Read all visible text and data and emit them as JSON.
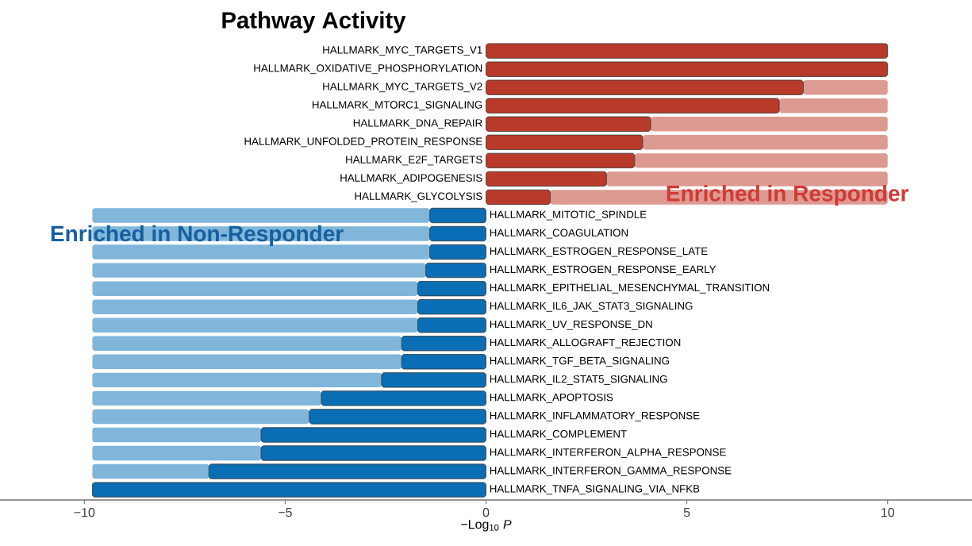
{
  "chart_data": {
    "type": "bar",
    "orientation": "horizontal",
    "title": "Pathway Activity",
    "xlabel": "−Log$_{10}$ *P*",
    "categories": [
      "HALLMARK_MYC_TARGETS_V1",
      "HALLMARK_OXIDATIVE_PHOSPHORYLATION",
      "HALLMARK_MYC_TARGETS_V2",
      "HALLMARK_MTORC1_SIGNALING",
      "HALLMARK_DNA_REPAIR",
      "HALLMARK_UNFOLDED_PROTEIN_RESPONSE",
      "HALLMARK_E2F_TARGETS",
      "HALLMARK_ADIPOGENESIS",
      "HALLMARK_GLYCOLYSIS",
      "HALLMARK_MITOTIC_SPINDLE",
      "HALLMARK_COAGULATION",
      "HALLMARK_ESTROGEN_RESPONSE_LATE",
      "HALLMARK_ESTROGEN_RESPONSE_EARLY",
      "HALLMARK_EPITHELIAL_MESENCHYMAL_TRANSITION",
      "HALLMARK_IL6_JAK_STAT3_SIGNALING",
      "HALLMARK_UV_RESPONSE_DN",
      "HALLMARK_ALLOGRAFT_REJECTION",
      "HALLMARK_TGF_BETA_SIGNALING",
      "HALLMARK_IL2_STAT5_SIGNALING",
      "HALLMARK_APOPTOSIS",
      "HALLMARK_INFLAMMATORY_RESPONSE",
      "HALLMARK_COMPLEMENT",
      "HALLMARK_INTERFERON_ALPHA_RESPONSE",
      "HALLMARK_INTERFERON_GAMMA_RESPONSE",
      "HALLMARK_TNFA_SIGNALING_VIA_NFKB"
    ],
    "stacked": true,
    "series": [
      {
        "values": [
          10,
          10,
          7.9,
          7.3,
          4.1,
          3.9,
          3.7,
          3.0,
          1.6,
          -1.4,
          -1.4,
          -1.4,
          -1.5,
          -1.7,
          -1.7,
          -1.7,
          -2.1,
          -2.1,
          -2.6,
          -4.1,
          -4.4,
          -5.6,
          -5.6,
          -6.9,
          -9.8
        ],
        "colors": [
          "#b93a2a",
          "#b93a2a",
          "#b93a2a",
          "#b93a2a",
          "#b93a2a",
          "#b93a2a",
          "#b93a2a",
          "#b93a2a",
          "#b93a2a",
          "#0a6eb4",
          "#0a6eb4",
          "#0a6eb4",
          "#0a6eb4",
          "#0a6eb4",
          "#0a6eb4",
          "#0a6eb4",
          "#0a6eb4",
          "#0a6eb4",
          "#0a6eb4",
          "#0a6eb4",
          "#0a6eb4",
          "#0a6eb4",
          "#0a6eb4",
          "#0a6eb4",
          "#0a6eb4"
        ]
      },
      {
        "values": [
          0,
          0,
          2.1,
          2.7,
          5.9,
          6.1,
          6.3,
          7.0,
          8.4,
          -8.4,
          -8.4,
          -8.4,
          -8.3,
          -8.1,
          -8.1,
          -8.1,
          -7.7,
          -7.7,
          -7.2,
          -5.7,
          -5.4,
          -4.2,
          -4.2,
          -2.9,
          0
        ],
        "colors": [
          "#dd9a92",
          "#dd9a92",
          "#dd9a92",
          "#dd9a92",
          "#dd9a92",
          "#dd9a92",
          "#dd9a92",
          "#dd9a92",
          "#dd9a92",
          "#80b6da",
          "#80b6da",
          "#80b6da",
          "#80b6da",
          "#80b6da",
          "#80b6da",
          "#80b6da",
          "#80b6da",
          "#80b6da",
          "#80b6da",
          "#80b6da",
          "#80b6da",
          "#80b6da",
          "#80b6da",
          "#80b6da",
          "#80b6da"
        ]
      }
    ],
    "xlim": [
      -12.1,
      12.1
    ],
    "xticks": [
      {
        "value": -10,
        "label": "−10"
      },
      {
        "value": -5,
        "label": "−5"
      },
      0,
      5,
      10
    ],
    "annotations": [
      "Enriched in Responder",
      "Enriched in Non-Responder"
    ]
  }
}
